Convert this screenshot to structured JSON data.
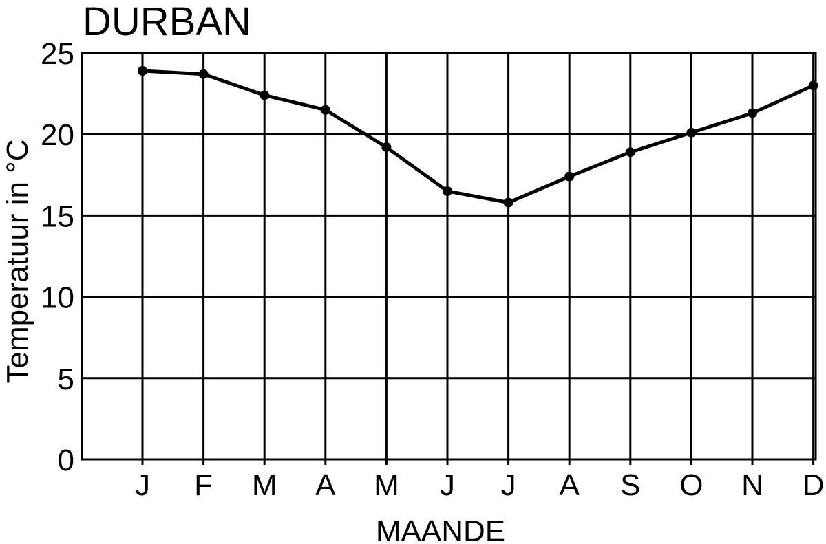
{
  "chart_data": {
    "type": "line",
    "title": "DURBAN",
    "xlabel": "MAANDE",
    "ylabel": "Temperatuur in °C",
    "categories": [
      "J",
      "F",
      "M",
      "A",
      "M",
      "J",
      "J",
      "A",
      "S",
      "O",
      "N",
      "D"
    ],
    "series": [
      {
        "values": [
          23.9,
          23.7,
          22.4,
          21.5,
          19.2,
          16.5,
          15.8,
          17.4,
          18.9,
          20.1,
          21.3,
          23.0
        ]
      }
    ],
    "ylim": [
      0,
      25
    ],
    "yticks": [
      0,
      5,
      10,
      15,
      20,
      25
    ],
    "grid": true,
    "line_color": "#000000",
    "grid_color": "#000000"
  }
}
